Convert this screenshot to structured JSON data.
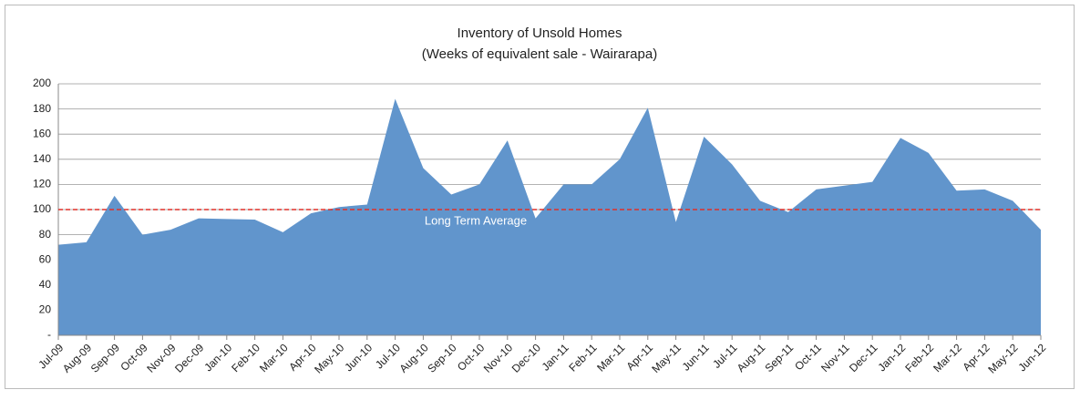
{
  "chart_data": {
    "type": "area",
    "title": "Inventory of  Unsold Homes",
    "subtitle": "(Weeks of equivalent sale - Wairarapa)",
    "categories": [
      "Jul-09",
      "Aug-09",
      "Sep-09",
      "Oct-09",
      "Nov-09",
      "Dec-09",
      "Jan-10",
      "Feb-10",
      "Mar-10",
      "Apr-10",
      "May-10",
      "Jun-10",
      "Jul-10",
      "Aug-10",
      "Sep-10",
      "Oct-10",
      "Nov-10",
      "Dec-10",
      "Jan-11",
      "Feb-11",
      "Mar-11",
      "Apr-11",
      "May-11",
      "Jun-11",
      "Jul-11",
      "Aug-11",
      "Sep-11",
      "Oct-11",
      "Nov-11",
      "Dec-11",
      "Jan-12",
      "Feb-12",
      "Mar-12",
      "Apr-12",
      "May-12",
      "Jun-12"
    ],
    "values": [
      72,
      74,
      111,
      80,
      84,
      93,
      92.5,
      92,
      82,
      97,
      102,
      104,
      188,
      133,
      112,
      120,
      155,
      93,
      120,
      120,
      140,
      181,
      90,
      158,
      136,
      107,
      98,
      116,
      119,
      122,
      157,
      145,
      115,
      116,
      107,
      84
    ],
    "color": "#6195cc",
    "ylim": [
      0,
      200
    ],
    "yticks": [
      {
        "value": 0,
        "label": "-"
      },
      20,
      40,
      60,
      80,
      100,
      120,
      140,
      160,
      180,
      200
    ],
    "grid": true,
    "reference_line": {
      "value": 100,
      "label": "Long Term Average",
      "color": "#e0302a"
    }
  }
}
